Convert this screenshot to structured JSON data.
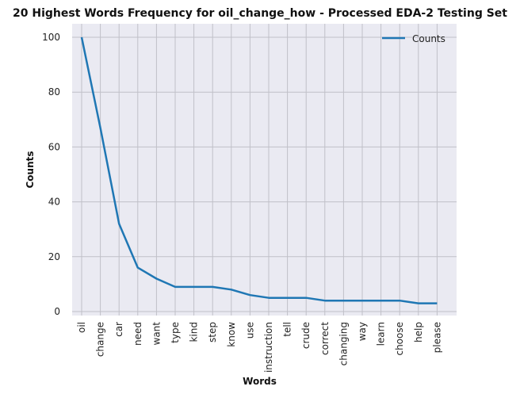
{
  "chart_data": {
    "type": "line",
    "title": "20 Highest Words Frequency for oil_change_how - Processed EDA-2 Testing Set",
    "xlabel": "Words",
    "ylabel": "Counts",
    "categories": [
      "oil",
      "change",
      "car",
      "need",
      "want",
      "type",
      "kind",
      "step",
      "know",
      "use",
      "instruction",
      "tell",
      "crude",
      "correct",
      "changing",
      "way",
      "learn",
      "choose",
      "help",
      "please"
    ],
    "series": [
      {
        "name": "Counts",
        "values": [
          100,
          67,
          32,
          16,
          12,
          9,
          9,
          9,
          8,
          6,
          5,
          5,
          5,
          4,
          4,
          4,
          4,
          4,
          3,
          3
        ]
      }
    ],
    "yticks": [
      0,
      20,
      40,
      60,
      80,
      100
    ],
    "ylim": [
      -2,
      105
    ],
    "grid": true,
    "legend": "top-right",
    "colors": {
      "line": "#1f77b4",
      "plot_bg": "#eaeaf2",
      "grid": "#c0c0c8"
    }
  }
}
